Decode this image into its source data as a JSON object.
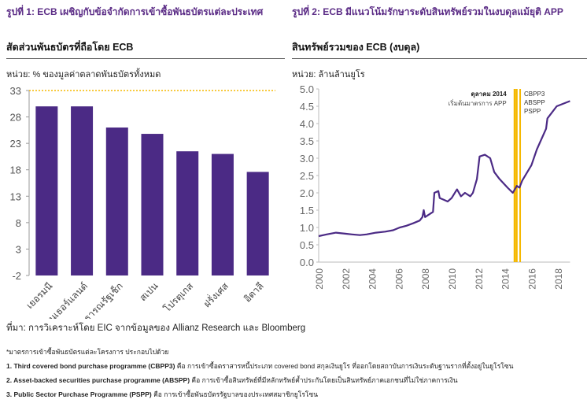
{
  "figure1": {
    "title": "รูปที่ 1: ECB เผชิญกับข้อจำกัดการเข้าซื้อพันธบัตรแต่ละประเทศ",
    "subtitle": "สัดส่วนพันธบัตรที่ถือโดย ECB",
    "unit": "หน่วย: % ของมูลค่าตลาดพันธบัตรทั้งหมด"
  },
  "figure2": {
    "title": "รูปที่ 2: ECB มีแนวโน้มรักษาระดับสินทรัพย์รวมในงบดุลแม้ยุติ APP",
    "subtitle": "สินทรัพย์รวมของ ECB (งบดุล)",
    "unit": "หน่วย: ล้านล้านยูโร"
  },
  "chart_data": [
    {
      "type": "bar",
      "categories": [
        "เยอรมนี",
        "เนเธอร์แลนด์",
        "สาธารณรัฐเช็ก",
        "สเปน",
        "โปรตุเกส",
        "ฝรั่งเศส",
        "อิตาลี"
      ],
      "values": [
        30,
        30,
        26,
        24.8,
        21.5,
        21,
        17.6
      ],
      "ylim": [
        -2,
        33
      ],
      "yticks": [
        "-2",
        "3",
        "8",
        "13",
        "18",
        "23",
        "28",
        "33"
      ],
      "reference_line": 33,
      "bar_color": "#4b2a85",
      "reference_color": "#f5b800",
      "grid": false
    },
    {
      "type": "line",
      "ylim": [
        0,
        5
      ],
      "xlim": [
        2000,
        2018.9
      ],
      "yticks": [
        "0.0",
        "0.5",
        "1.0",
        "1.5",
        "2.0",
        "2.5",
        "3.0",
        "3.5",
        "4.0",
        "4.5",
        "5.0"
      ],
      "xticks": [
        "2000",
        "2002",
        "2004",
        "2006",
        "2008",
        "2010",
        "2012",
        "2014",
        "2016",
        "2018"
      ],
      "line_color": "#4b2a85",
      "series": [
        {
          "x": [
            2000,
            2000.6,
            2001.3,
            2002,
            2002.5,
            2003.1,
            2003.6,
            2004.3,
            2005,
            2005.6,
            2006.1,
            2006.6,
            2007.1,
            2007.6,
            2007.8,
            2007.9,
            2008,
            2008.6,
            2008.7,
            2009,
            2009.1,
            2009.4,
            2009.7,
            2010,
            2010.4,
            2010.7,
            2011,
            2011.4,
            2011.6,
            2011.9,
            2012.1,
            2012.5,
            2012.9,
            2013.2,
            2013.6,
            2014.2,
            2014.6,
            2014.9,
            2015.1,
            2015.3,
            2016,
            2016.4,
            2017.1,
            2017.2,
            2017.9,
            2018.9
          ],
          "y": [
            0.75,
            0.8,
            0.85,
            0.82,
            0.8,
            0.78,
            0.8,
            0.85,
            0.88,
            0.92,
            1.0,
            1.05,
            1.12,
            1.2,
            1.3,
            1.5,
            1.3,
            1.45,
            2.0,
            2.05,
            1.85,
            1.8,
            1.75,
            1.85,
            2.1,
            1.9,
            2.0,
            1.9,
            2.0,
            2.4,
            3.05,
            3.1,
            3.0,
            2.6,
            2.4,
            2.15,
            2.0,
            2.2,
            2.15,
            2.35,
            2.8,
            3.25,
            3.85,
            4.15,
            4.5,
            4.65
          ]
        }
      ],
      "markers": [
        {
          "label": "CBPP3",
          "x": 2014.75
        },
        {
          "label": "ABSPP",
          "x": 2014.9
        },
        {
          "label": "PSPP",
          "x": 2015.15
        }
      ],
      "marker_color": "#f5b800",
      "annotation": {
        "title": "ตุลาคม 2014",
        "text": "เริ่มต้นมาตรการ APP"
      }
    }
  ],
  "source": "ที่มา: การวิเคราะห์โดย EIC จากข้อมูลของ Allianz Research และ Bloomberg",
  "footnotes": {
    "intro": "*มาตรการเข้าซื้อพันธบัตรแต่ละโครงการ ประกอบไปด้วย",
    "items": [
      {
        "name": "1. Third covered bond purchase programme (CBPP3)",
        "desc": " คือ การเข้าซื้อตราสารหนี้ประเภท covered bond สกุลเงินยูโร ที่ออกโดยสถาบันการเงินระดับฐานรากที่ตั้งอยู่ในยูโรโซน"
      },
      {
        "name": "2. Asset-backed securities purchase programme (ABSPP)",
        "desc": " คือ การเข้าซื้อสินทรัพย์ที่มีหลักทรัพย์ค้ำประกันโดยเป็นสินทรัพย์ภาคเอกชนที่ไม่ใช่ภาคการเงิน"
      },
      {
        "name": "3. Public Sector Purchase Programme (PSPP)",
        "desc": " คือ การเข้าซื้อพันธบัตรรัฐบาลของประเทศสมาชิกยูโรโซน"
      }
    ]
  }
}
